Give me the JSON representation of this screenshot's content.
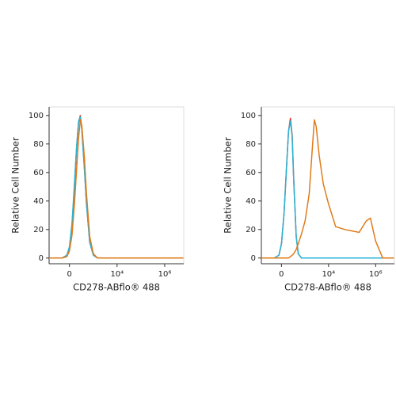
{
  "chart_data": [
    {
      "type": "line",
      "xscale": "biexponential",
      "x_label": "CD278-ABflo® 488",
      "y_label": "Relative Cell Number",
      "x": [
        -700,
        -300,
        -150,
        -50,
        0,
        50,
        100,
        150,
        200,
        250,
        300,
        400,
        500,
        700,
        1000,
        1500,
        2000,
        2500,
        3000,
        4000,
        6000,
        10000,
        20000,
        50000,
        100000,
        200000,
        400000,
        600000,
        1000000,
        2000000,
        6000000
      ],
      "series": [
        {
          "color": "#e8312a",
          "values": [
            0,
            0,
            0,
            2,
            7,
            23,
            50,
            77,
            95,
            100,
            91,
            64,
            38,
            11,
            2,
            0,
            0,
            0,
            0,
            0,
            0,
            0,
            0,
            0,
            0,
            0,
            0,
            0,
            0,
            0,
            0
          ]
        },
        {
          "color": "#27b5d8",
          "values": [
            0,
            0,
            0,
            2,
            8,
            24,
            52,
            78,
            96,
            99,
            90,
            63,
            38,
            11,
            2,
            0,
            0,
            0,
            0,
            0,
            0,
            0,
            0,
            0,
            0,
            0,
            0,
            0,
            0,
            0,
            0
          ]
        },
        {
          "color": "#e07b1a",
          "values": [
            0,
            0,
            0,
            1,
            5,
            16,
            38,
            62,
            84,
            97,
            93,
            71,
            45,
            15,
            3,
            0,
            0,
            0,
            0,
            0,
            0,
            0,
            0,
            0,
            0,
            0,
            0,
            0,
            0,
            0,
            0
          ]
        }
      ],
      "xlim": [
        -700,
        6300000
      ],
      "xticks": [
        0,
        {
          "value": 10000,
          "label": "10⁴"
        },
        {
          "value": 1000000,
          "label": "10⁶"
        }
      ],
      "ylim": [
        -4,
        106
      ],
      "yticks": [
        0,
        20,
        40,
        60,
        80,
        100
      ]
    },
    {
      "type": "line",
      "xscale": "biexponential",
      "x_label": "CD278-ABflo® 488",
      "y_label": "Relative Cell Number",
      "x": [
        -700,
        -300,
        -150,
        -50,
        0,
        50,
        100,
        150,
        200,
        250,
        300,
        400,
        500,
        700,
        1000,
        1500,
        2000,
        2500,
        3000,
        4000,
        6000,
        10000,
        20000,
        50000,
        100000,
        200000,
        400000,
        600000,
        1000000,
        2000000,
        6000000
      ],
      "series": [
        {
          "color": "#e8312a",
          "values": [
            0,
            0,
            0,
            2,
            10,
            31,
            62,
            89,
            98,
            86,
            56,
            15,
            3,
            0,
            0,
            0,
            0,
            0,
            0,
            0,
            0,
            0,
            0,
            0,
            0,
            0,
            0,
            0,
            0,
            0,
            0
          ]
        },
        {
          "color": "#27b5d8",
          "values": [
            0,
            0,
            0,
            2,
            10,
            31,
            62,
            89,
            96,
            85,
            55,
            15,
            3,
            0,
            0,
            0,
            0,
            0,
            0,
            0,
            0,
            0,
            0,
            0,
            0,
            0,
            0,
            0,
            0,
            0,
            0
          ]
        },
        {
          "color": "#e07b1a",
          "values": [
            0,
            0,
            0,
            0,
            0,
            0,
            0,
            0,
            1,
            2,
            3,
            6,
            10,
            17,
            26,
            45,
            75,
            97,
            92,
            72,
            52,
            38,
            22,
            20,
            19,
            18,
            26,
            28,
            12,
            0,
            0
          ]
        }
      ],
      "xlim": [
        -700,
        6300000
      ],
      "xticks": [
        0,
        {
          "value": 10000,
          "label": "10⁴"
        },
        {
          "value": 1000000,
          "label": "10⁶"
        }
      ],
      "ylim": [
        -4,
        106
      ],
      "yticks": [
        0,
        20,
        40,
        60,
        80,
        100
      ]
    }
  ]
}
